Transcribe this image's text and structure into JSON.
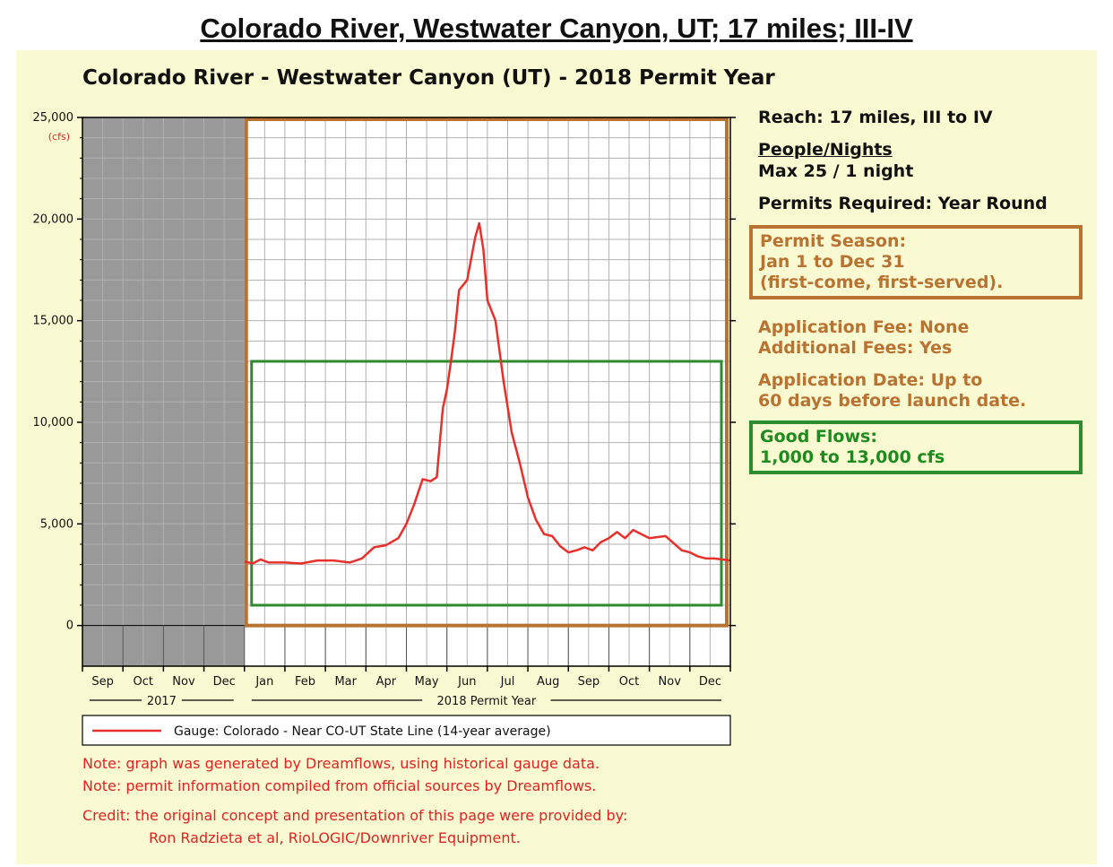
{
  "page_title": "Colorado River, Westwater Canyon, UT; 17 miles; III-IV",
  "chart_data": {
    "type": "line",
    "title": "Colorado River - Westwater Canyon (UT) - 2018 Permit Year",
    "y_unit": "(cfs)",
    "ylim": [
      -2000,
      25000
    ],
    "y_ticks": [
      0,
      5000,
      10000,
      15000,
      20000,
      25000
    ],
    "y_tick_labels": [
      "0",
      "5,000",
      "10,000",
      "15,000",
      "20,000",
      "25,000"
    ],
    "month_labels": [
      "Sep",
      "Oct",
      "Nov",
      "Dec",
      "Jan",
      "Feb",
      "Mar",
      "Apr",
      "May",
      "Jun",
      "Jul",
      "Aug",
      "Sep",
      "Oct",
      "Nov",
      "Dec"
    ],
    "period_labels": [
      "2017",
      "2018 Permit Year"
    ],
    "x_axis": "months from Sep 1 2017 to Dec 31 2018",
    "grid": true,
    "shaded_period": {
      "from": "Sep",
      "to": "Dec",
      "year": "2017",
      "color": "#999999"
    },
    "permit_season_box": {
      "color": "#b87333"
    },
    "good_flows_range": {
      "min": 1000,
      "max": 13000,
      "color": "#2e8b2e"
    },
    "series": [
      {
        "name": "Gauge: Colorado - Near CO-UT State Line (14-year average)",
        "color": "#e8302a",
        "x_months": [
          4.0,
          4.2,
          4.4,
          4.6,
          5.0,
          5.4,
          5.8,
          6.2,
          6.6,
          6.9,
          7.2,
          7.5,
          7.8,
          8.0,
          8.2,
          8.4,
          8.6,
          8.75,
          8.9,
          9.0,
          9.1,
          9.2,
          9.3,
          9.5,
          9.7,
          9.8,
          9.9,
          10.0,
          10.2,
          10.4,
          10.6,
          10.8,
          11.0,
          11.2,
          11.4,
          11.6,
          11.8,
          12.0,
          12.2,
          12.4,
          12.6,
          12.8,
          13.0,
          13.2,
          13.4,
          13.6,
          14.0,
          14.4,
          14.8,
          15.0,
          15.2,
          15.4,
          15.6,
          16.0
        ],
        "y_cfs": [
          3150,
          3050,
          3250,
          3100,
          3100,
          3050,
          3200,
          3200,
          3100,
          3300,
          3850,
          3950,
          4300,
          5000,
          6000,
          7200,
          7100,
          7300,
          10700,
          11600,
          13000,
          14500,
          16500,
          17000,
          19100,
          19800,
          18500,
          16000,
          15000,
          12000,
          9500,
          8000,
          6300,
          5200,
          4500,
          4400,
          3900,
          3600,
          3700,
          3850,
          3700,
          4100,
          4300,
          4600,
          4300,
          4700,
          4300,
          4400,
          3700,
          3600,
          3400,
          3300,
          3300,
          3200
        ]
      }
    ]
  },
  "info": {
    "reach": "Reach: 17 miles, III to IV",
    "people_nights_heading": "People/Nights",
    "people_nights_value": "Max 25 / 1 night",
    "permits_required": "Permits Required: Year Round",
    "permit_season": [
      "Permit Season:",
      "Jan 1 to Dec 31",
      "(first-come, first-served)."
    ],
    "application_fee": "Application Fee: None",
    "additional_fees": "Additional Fees: Yes",
    "application_date": [
      "Application Date: Up to",
      "60 days before launch date."
    ],
    "good_flows": [
      "Good Flows:",
      "1,000 to 13,000 cfs"
    ]
  },
  "notes": [
    "Note: graph was generated by Dreamflows, using historical gauge data.",
    "Note: permit information compiled from official sources by Dreamflows."
  ],
  "credit": [
    "Credit: the original concept and presentation of this page were provided by:",
    "Ron Radzieta et al, RioLOGIC/Downriver Equipment."
  ],
  "colors": {
    "background_panel": "#fafad2",
    "brown_accent": "#b87333",
    "green_accent": "#1e8b1e",
    "note_red": "#e22222"
  }
}
